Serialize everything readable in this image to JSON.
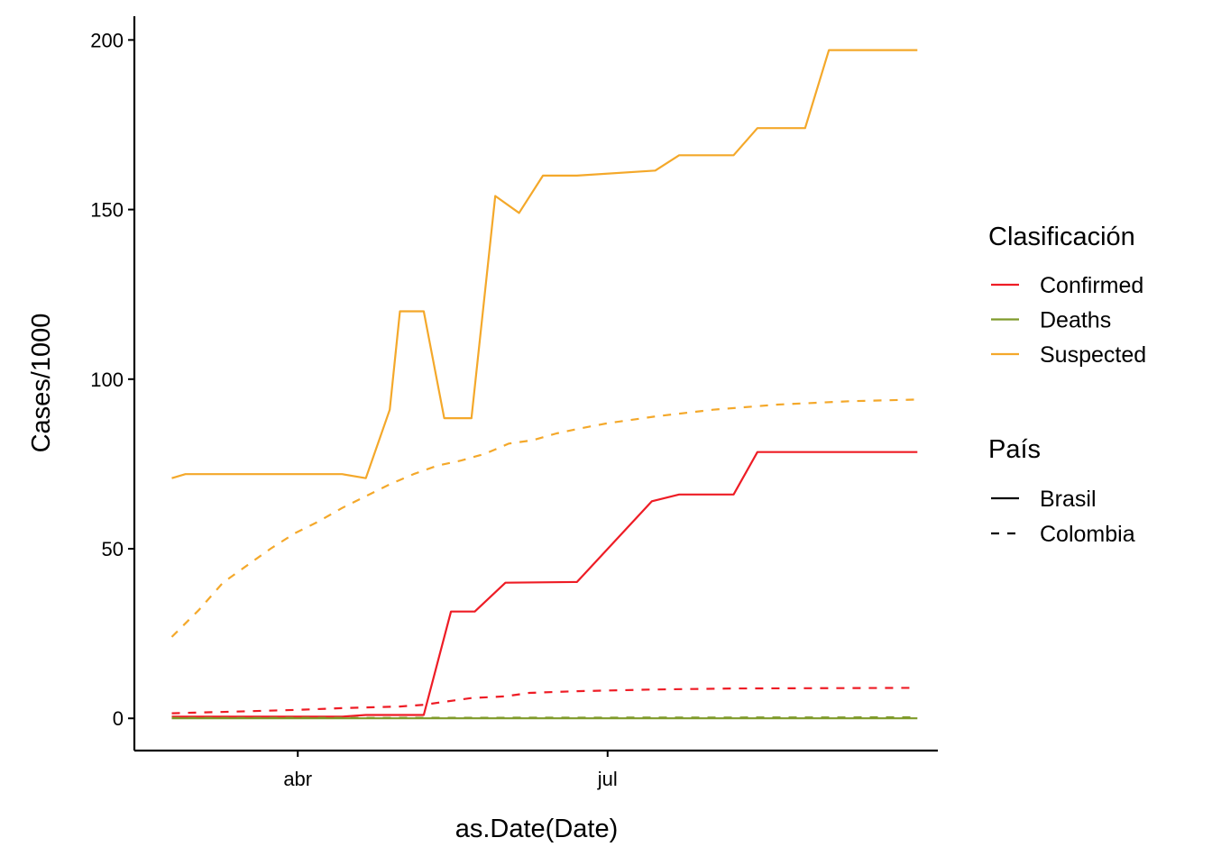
{
  "chart_data": {
    "type": "line",
    "title": "",
    "xlabel": "as.Date(Date)",
    "ylabel": "Cases/1000",
    "x_ticks": [
      {
        "label": "abr",
        "date": "2020-04-01"
      },
      {
        "label": "jul",
        "date": "2020-07-01"
      }
    ],
    "xlim": [
      "2020-02-13",
      "2020-10-06"
    ],
    "y_ticks": [
      0,
      50,
      100,
      150,
      200
    ],
    "ylim": [
      -9.5,
      207
    ],
    "grid": false,
    "legend_position": "right",
    "color_legend": {
      "title": "Clasificación",
      "items": [
        {
          "label": "Confirmed",
          "color": "#ee1c25"
        },
        {
          "label": "Deaths",
          "color": "#7f9a2a"
        },
        {
          "label": "Suspected",
          "color": "#f4a82a"
        }
      ]
    },
    "linetype_legend": {
      "title": "País",
      "items": [
        {
          "label": "Brasil",
          "dash": "solid"
        },
        {
          "label": "Colombia",
          "dash": "dashed"
        }
      ]
    },
    "series": [
      {
        "name": "Confirmed",
        "country": "Brasil",
        "color": "#ee1c25",
        "dash": "solid",
        "points": [
          [
            "2020-02-24",
            0.5
          ],
          [
            "2020-03-14",
            0.5
          ],
          [
            "2020-04-14",
            0.5
          ],
          [
            "2020-04-21",
            1.0
          ],
          [
            "2020-05-08",
            1.0
          ],
          [
            "2020-05-16",
            31.5
          ],
          [
            "2020-05-23",
            31.5
          ],
          [
            "2020-06-01",
            40.0
          ],
          [
            "2020-06-22",
            40.2
          ],
          [
            "2020-07-14",
            64.0
          ],
          [
            "2020-07-22",
            66.0
          ],
          [
            "2020-08-07",
            66.0
          ],
          [
            "2020-08-14",
            78.5
          ],
          [
            "2020-09-30",
            78.5
          ]
        ]
      },
      {
        "name": "Deaths",
        "country": "Brasil",
        "color": "#7f9a2a",
        "dash": "solid",
        "points": [
          [
            "2020-02-24",
            0.0
          ],
          [
            "2020-09-30",
            0.0
          ]
        ]
      },
      {
        "name": "Suspected",
        "country": "Brasil",
        "color": "#f4a82a",
        "dash": "solid",
        "points": [
          [
            "2020-02-24",
            70.8
          ],
          [
            "2020-02-28",
            72.0
          ],
          [
            "2020-04-14",
            72.0
          ],
          [
            "2020-04-21",
            70.8
          ],
          [
            "2020-04-28",
            91.0
          ],
          [
            "2020-05-01",
            120.0
          ],
          [
            "2020-05-08",
            120.0
          ],
          [
            "2020-05-14",
            88.5
          ],
          [
            "2020-05-22",
            88.5
          ],
          [
            "2020-05-29",
            154.0
          ],
          [
            "2020-06-05",
            149.0
          ],
          [
            "2020-06-12",
            160.0
          ],
          [
            "2020-06-22",
            160.0
          ],
          [
            "2020-07-15",
            161.5
          ],
          [
            "2020-07-22",
            166.0
          ],
          [
            "2020-08-07",
            166.0
          ],
          [
            "2020-08-14",
            174.0
          ],
          [
            "2020-08-28",
            174.0
          ],
          [
            "2020-09-04",
            197.0
          ],
          [
            "2020-09-30",
            197.0
          ]
        ]
      },
      {
        "name": "Confirmed",
        "country": "Colombia",
        "color": "#ee1c25",
        "dash": "dashed",
        "points": [
          [
            "2020-02-24",
            1.5
          ],
          [
            "2020-03-14",
            2.0
          ],
          [
            "2020-04-01",
            2.5
          ],
          [
            "2020-04-14",
            3.0
          ],
          [
            "2020-05-01",
            3.5
          ],
          [
            "2020-05-08",
            4.0
          ],
          [
            "2020-05-15",
            5.0
          ],
          [
            "2020-05-22",
            6.0
          ],
          [
            "2020-06-01",
            6.5
          ],
          [
            "2020-06-08",
            7.5
          ],
          [
            "2020-06-22",
            8.0
          ],
          [
            "2020-07-15",
            8.5
          ],
          [
            "2020-08-07",
            8.8
          ],
          [
            "2020-09-30",
            9.0
          ]
        ]
      },
      {
        "name": "Deaths",
        "country": "Colombia",
        "color": "#7f9a2a",
        "dash": "dashed",
        "points": [
          [
            "2020-02-24",
            0.1
          ],
          [
            "2020-09-30",
            0.3
          ]
        ]
      },
      {
        "name": "Suspected",
        "country": "Colombia",
        "color": "#f4a82a",
        "dash": "dashed",
        "points": [
          [
            "2020-02-24",
            24.0
          ],
          [
            "2020-03-03",
            32.0
          ],
          [
            "2020-03-10",
            40.0
          ],
          [
            "2020-03-17",
            45.0
          ],
          [
            "2020-03-24",
            50.0
          ],
          [
            "2020-03-31",
            54.5
          ],
          [
            "2020-04-07",
            58.0
          ],
          [
            "2020-04-14",
            62.0
          ],
          [
            "2020-04-21",
            65.5
          ],
          [
            "2020-04-28",
            69.0
          ],
          [
            "2020-05-05",
            72.0
          ],
          [
            "2020-05-12",
            74.5
          ],
          [
            "2020-05-19",
            76.0
          ],
          [
            "2020-05-26",
            78.0
          ],
          [
            "2020-06-02",
            81.0
          ],
          [
            "2020-06-09",
            82.0
          ],
          [
            "2020-06-16",
            84.0
          ],
          [
            "2020-06-23",
            85.5
          ],
          [
            "2020-07-01",
            87.0
          ],
          [
            "2020-07-15",
            89.0
          ],
          [
            "2020-08-01",
            91.0
          ],
          [
            "2020-08-20",
            92.5
          ],
          [
            "2020-09-10",
            93.5
          ],
          [
            "2020-09-30",
            94.0
          ]
        ]
      }
    ]
  }
}
